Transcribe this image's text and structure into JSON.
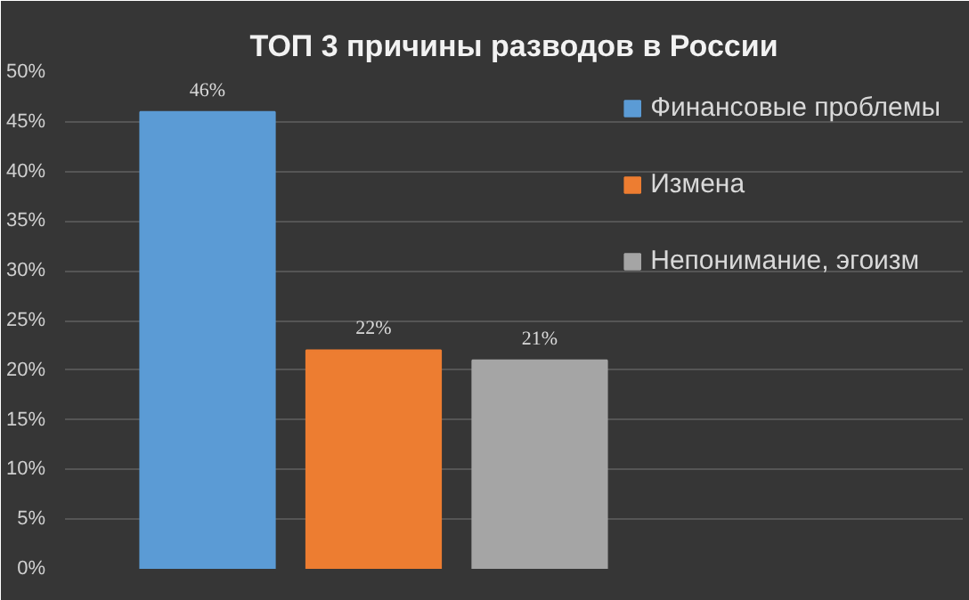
{
  "chart_data": {
    "type": "bar",
    "title": "ТОП 3 причины разводов в России",
    "categories": [
      null
    ],
    "series": [
      {
        "name": "Финансовые проблемы",
        "color": "#5b9bd5",
        "values": [
          46
        ],
        "value_labels": [
          "46%"
        ]
      },
      {
        "name": "Измена",
        "color": "#ed7d31",
        "values": [
          22
        ],
        "value_labels": [
          "22%"
        ]
      },
      {
        "name": "Непонимание, эгоизм",
        "color": "#a5a5a5",
        "values": [
          21
        ],
        "value_labels": [
          "21%"
        ]
      }
    ],
    "ylim": [
      0,
      50
    ],
    "yticks": [
      {
        "value": 0,
        "label": "0%"
      },
      {
        "value": 5,
        "label": "5%"
      },
      {
        "value": 10,
        "label": "10%"
      },
      {
        "value": 15,
        "label": "15%"
      },
      {
        "value": 20,
        "label": "20%"
      },
      {
        "value": 25,
        "label": "25%"
      },
      {
        "value": 30,
        "label": "30%"
      },
      {
        "value": 35,
        "label": "35%"
      },
      {
        "value": 40,
        "label": "40%"
      },
      {
        "value": 45,
        "label": "45%"
      },
      {
        "value": 50,
        "label": "50%"
      }
    ],
    "grid": "y",
    "legend": "top right"
  }
}
